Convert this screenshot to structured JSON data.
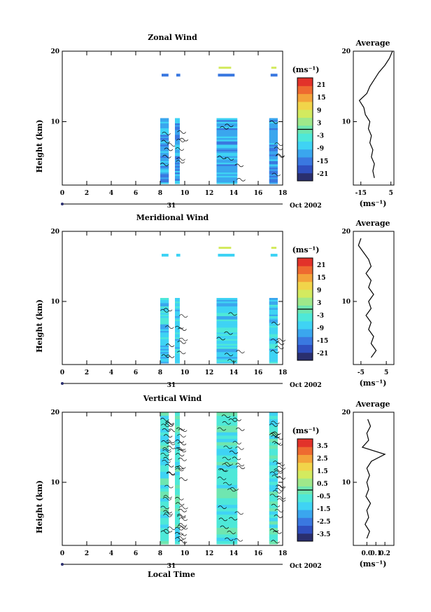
{
  "shared": {
    "time_ticks": [
      "0",
      "2",
      "4",
      "6",
      "8",
      "10",
      "12",
      "14",
      "16",
      "18"
    ],
    "height_ticks": [
      "10",
      "20"
    ],
    "height_label": "Height (km)",
    "day_marker": "31",
    "month_label": "Oct 2002",
    "xlabel_bottom": "Local Time",
    "unit_label": "(ms⁻¹)",
    "avg_title": "Average"
  },
  "chart_data": [
    {
      "type": "heatmap",
      "title": "Zonal Wind",
      "xlim": [
        0,
        18
      ],
      "ylim": [
        1,
        20
      ],
      "time_blocks": [
        [
          8.0,
          8.7
        ],
        [
          9.2,
          9.6
        ],
        [
          12.6,
          14.3
        ],
        [
          16.9,
          17.6
        ]
      ],
      "colorbar": {
        "ticks": [
          "21",
          "15",
          "9",
          "3",
          "-3",
          "-9",
          "-15",
          "-21"
        ],
        "zero_line": 0
      },
      "average_profile": {
        "title": "Average",
        "xlim": [
          -20,
          7
        ],
        "xticks": [
          "-15",
          "5"
        ],
        "xlabel": "(ms⁻¹)",
        "ylim": [
          1,
          20
        ],
        "points": [
          [
            -6,
            2
          ],
          [
            -7,
            3
          ],
          [
            -6,
            4
          ],
          [
            -8,
            5
          ],
          [
            -7,
            6
          ],
          [
            -9,
            7
          ],
          [
            -8,
            8
          ],
          [
            -10,
            9
          ],
          [
            -9,
            10
          ],
          [
            -12,
            11
          ],
          [
            -13,
            12
          ],
          [
            -16,
            13
          ],
          [
            -11,
            14
          ],
          [
            -9,
            15
          ],
          [
            -6,
            16
          ],
          [
            -3,
            17
          ],
          [
            1,
            18
          ],
          [
            4,
            19
          ],
          [
            6,
            20
          ]
        ]
      }
    },
    {
      "type": "heatmap",
      "title": "Meridional Wind",
      "xlim": [
        0,
        18
      ],
      "ylim": [
        1,
        20
      ],
      "time_blocks": [
        [
          8.0,
          8.7
        ],
        [
          9.2,
          9.6
        ],
        [
          12.6,
          14.3
        ],
        [
          16.9,
          17.6
        ]
      ],
      "colorbar": {
        "ticks": [
          "21",
          "15",
          "9",
          "3",
          "-3",
          "-9",
          "-15",
          "-21"
        ],
        "zero_line": 0
      },
      "average_profile": {
        "title": "Average",
        "xlim": [
          -8,
          8
        ],
        "xticks": [
          "-5",
          "5"
        ],
        "xlabel": "(ms⁻¹)",
        "ylim": [
          1,
          20
        ],
        "points": [
          [
            -1,
            2
          ],
          [
            1,
            3
          ],
          [
            -1,
            4
          ],
          [
            0,
            5
          ],
          [
            -2,
            6
          ],
          [
            -1,
            7
          ],
          [
            -3,
            8
          ],
          [
            -1,
            9
          ],
          [
            -2,
            10
          ],
          [
            0,
            11
          ],
          [
            -2,
            12
          ],
          [
            -1,
            13
          ],
          [
            -3,
            14
          ],
          [
            -1,
            15
          ],
          [
            -2,
            16
          ],
          [
            -4,
            17
          ],
          [
            -6,
            18
          ],
          [
            -5,
            19
          ]
        ]
      }
    },
    {
      "type": "heatmap",
      "title": "Vertical Wind",
      "xlim": [
        0,
        18
      ],
      "ylim": [
        1,
        20
      ],
      "time_blocks": [
        [
          8.0,
          8.7
        ],
        [
          9.2,
          9.6
        ],
        [
          12.6,
          14.3
        ],
        [
          16.9,
          17.6
        ]
      ],
      "colorbar": {
        "ticks": [
          "3.5",
          "2.5",
          "1.5",
          "0.5",
          "-0.5",
          "-1.5",
          "-2.5",
          "-3.5"
        ],
        "zero_line": 0
      },
      "average_profile": {
        "title": "Average",
        "xlim": [
          -0.15,
          0.3
        ],
        "xticks": [
          "0.0",
          "0.1",
          "0.2"
        ],
        "xlabel": "(ms⁻¹)",
        "ylim": [
          1,
          20
        ],
        "points": [
          [
            0.0,
            2
          ],
          [
            0.03,
            3
          ],
          [
            -0.02,
            4
          ],
          [
            0.02,
            5
          ],
          [
            0.0,
            6
          ],
          [
            0.04,
            7
          ],
          [
            -0.01,
            8
          ],
          [
            0.02,
            9
          ],
          [
            0.0,
            10
          ],
          [
            0.03,
            11
          ],
          [
            0.0,
            12
          ],
          [
            0.05,
            13
          ],
          [
            0.2,
            14
          ],
          [
            -0.05,
            15
          ],
          [
            0.02,
            16
          ],
          [
            0.0,
            17
          ],
          [
            0.04,
            18
          ],
          [
            0.01,
            19
          ]
        ]
      }
    }
  ],
  "colors": {
    "scale": [
      "#2a2f6e",
      "#2f4fbf",
      "#3a78e0",
      "#3aa6ee",
      "#3fd3f4",
      "#4ee8d8",
      "#6fe6b0",
      "#9fe88a",
      "#d3ea5f",
      "#f1d44a",
      "#f3a33a",
      "#ee6a30",
      "#e2322a"
    ]
  }
}
